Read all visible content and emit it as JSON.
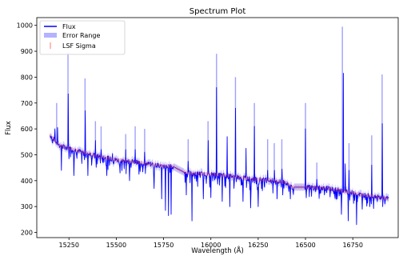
{
  "chart_data": {
    "type": "line",
    "title": "Spectrum Plot",
    "xlabel": "Wavelength (Å)",
    "ylabel": "Flux",
    "xlim": [
      15080,
      16990
    ],
    "ylim": [
      180,
      1030
    ],
    "xticks": [
      15250,
      15500,
      15750,
      16000,
      16250,
      16500,
      16750
    ],
    "yticks": [
      200,
      300,
      400,
      500,
      600,
      700,
      800,
      900,
      1000
    ],
    "grid": false,
    "legend_position": "top-left",
    "legend": [
      {
        "label": "Flux",
        "kind": "line",
        "color": "#0000ff"
      },
      {
        "label": "Error Range",
        "kind": "band",
        "color": "#8080ff"
      },
      {
        "label": "LSF Sigma",
        "kind": "errorbar",
        "color": "#ff5555"
      }
    ],
    "series": [
      {
        "name": "Flux",
        "color": "#0000ff",
        "x_start": 15150,
        "x_end": 16940,
        "continuum": [
          [
            15150,
            575
          ],
          [
            15200,
            535
          ],
          [
            15300,
            515
          ],
          [
            15400,
            495
          ],
          [
            15500,
            480
          ],
          [
            15600,
            472
          ],
          [
            15700,
            462
          ],
          [
            15760,
            455
          ],
          [
            15800,
            455
          ],
          [
            15860,
            432
          ],
          [
            15900,
            428
          ],
          [
            16000,
            425
          ],
          [
            16100,
            418
          ],
          [
            16200,
            408
          ],
          [
            16300,
            402
          ],
          [
            16400,
            392
          ],
          [
            16430,
            375
          ],
          [
            16500,
            375
          ],
          [
            16600,
            372
          ],
          [
            16700,
            360
          ],
          [
            16800,
            345
          ],
          [
            16940,
            330
          ]
        ],
        "peaks": [
          [
            15175,
            600
          ],
          [
            15190,
            605
          ],
          [
            15245,
            735
          ],
          [
            15335,
            670
          ],
          [
            15390,
            555
          ],
          [
            15420,
            520
          ],
          [
            15480,
            505
          ],
          [
            15550,
            520
          ],
          [
            15600,
            520
          ],
          [
            15650,
            510
          ],
          [
            15880,
            475
          ],
          [
            15985,
            555
          ],
          [
            16030,
            760
          ],
          [
            16085,
            570
          ],
          [
            16130,
            680
          ],
          [
            16185,
            525
          ],
          [
            16230,
            610
          ],
          [
            16300,
            440
          ],
          [
            16335,
            440
          ],
          [
            16375,
            445
          ],
          [
            16500,
            600
          ],
          [
            16560,
            405
          ],
          [
            16700,
            815
          ],
          [
            16710,
            465
          ],
          [
            16730,
            440
          ],
          [
            16850,
            460
          ],
          [
            16905,
            620
          ]
        ],
        "dips": [
          [
            15210,
            440
          ],
          [
            15275,
            420
          ],
          [
            15350,
            420
          ],
          [
            15450,
            420
          ],
          [
            15520,
            430
          ],
          [
            15570,
            400
          ],
          [
            15620,
            425
          ],
          [
            15650,
            400
          ],
          [
            15700,
            370
          ],
          [
            15740,
            330
          ],
          [
            15760,
            285
          ],
          [
            15775,
            265
          ],
          [
            15790,
            270
          ],
          [
            15870,
            345
          ],
          [
            15900,
            245
          ],
          [
            15960,
            330
          ],
          [
            16000,
            335
          ],
          [
            16060,
            320
          ],
          [
            16100,
            300
          ],
          [
            16170,
            320
          ],
          [
            16210,
            295
          ],
          [
            16250,
            300
          ],
          [
            16300,
            335
          ],
          [
            16350,
            330
          ],
          [
            16380,
            345
          ],
          [
            16420,
            330
          ],
          [
            16600,
            345
          ],
          [
            16690,
            270
          ],
          [
            16725,
            245
          ],
          [
            16770,
            230
          ],
          [
            16800,
            290
          ],
          [
            16840,
            300
          ],
          [
            16920,
            310
          ]
        ]
      },
      {
        "name": "Error Range",
        "color": "#8080ff",
        "peaks": [
          [
            15185,
            700
          ],
          [
            15245,
            895
          ],
          [
            15335,
            795
          ],
          [
            15390,
            630
          ],
          [
            15420,
            610
          ],
          [
            15550,
            580
          ],
          [
            15600,
            610
          ],
          [
            15650,
            600
          ],
          [
            15880,
            560
          ],
          [
            15985,
            630
          ],
          [
            16030,
            890
          ],
          [
            16130,
            800
          ],
          [
            16230,
            700
          ],
          [
            16300,
            560
          ],
          [
            16335,
            545
          ],
          [
            16375,
            560
          ],
          [
            16500,
            700
          ],
          [
            16560,
            470
          ],
          [
            16695,
            995
          ],
          [
            16730,
            545
          ],
          [
            16850,
            575
          ],
          [
            16905,
            810
          ]
        ]
      },
      {
        "name": "LSF Sigma",
        "color": "#ff5555"
      }
    ]
  }
}
